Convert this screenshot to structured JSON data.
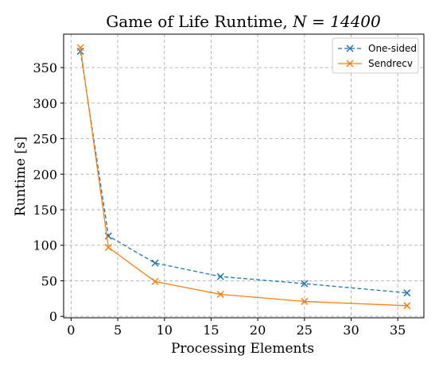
{
  "chart_data": {
    "type": "line",
    "title": "Game of Life Runtime,",
    "title_math": "N = 14400",
    "xlabel": "Processing Elements",
    "ylabel": "Runtime [s]",
    "x": [
      1,
      4,
      9,
      16,
      25,
      36
    ],
    "xlim": [
      -0.8,
      37.8
    ],
    "ylim": [
      -2,
      397
    ],
    "xticks": [
      0,
      5,
      10,
      15,
      20,
      25,
      30,
      35
    ],
    "yticks": [
      0,
      50,
      100,
      150,
      200,
      250,
      300,
      350
    ],
    "grid": true,
    "grid_style": "dashed",
    "legend_position": "top-right",
    "series": [
      {
        "name": "One-sided",
        "color": "#1f77b4",
        "marker": "x",
        "line_style": "dashed",
        "values": [
          373,
          113,
          75,
          56,
          46,
          33
        ]
      },
      {
        "name": "Sendrecv",
        "color": "#ff7f0e",
        "marker": "x",
        "line_style": "solid",
        "values": [
          378,
          97,
          49,
          31,
          21,
          15
        ]
      }
    ]
  }
}
